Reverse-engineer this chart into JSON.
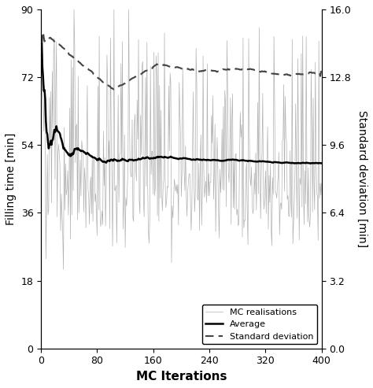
{
  "title": "",
  "xlabel": "MC Iterations",
  "ylabel_left": "Filling time [min]",
  "ylabel_right": "Standard deviation [min]",
  "xlim": [
    0,
    400
  ],
  "ylim_left": [
    0,
    90
  ],
  "ylim_right": [
    0,
    16
  ],
  "yticks_left": [
    0,
    18,
    36,
    54,
    72,
    90
  ],
  "yticks_right": [
    0,
    3.2,
    6.4,
    9.6,
    12.8,
    16
  ],
  "xticks": [
    0,
    80,
    160,
    240,
    320,
    400
  ],
  "n_iterations": 400,
  "mc_mean": 42.0,
  "mc_std_base": 7.5,
  "avg_start": 48.0,
  "avg_final": 42.0,
  "std_start": 14.5,
  "std_peak": 14.8,
  "std_dip": 12.2,
  "std_settle": 12.8,
  "color_mc": "#aaaaaa",
  "color_avg": "#000000",
  "color_std": "#444444",
  "legend_labels": [
    "MC realisations",
    "Average",
    "Standard deviation"
  ],
  "legend_loc": "lower right",
  "legend_fontsize": 8,
  "xlabel_fontsize": 11,
  "ylabel_fontsize": 10,
  "tick_fontsize": 9,
  "seed": 123
}
